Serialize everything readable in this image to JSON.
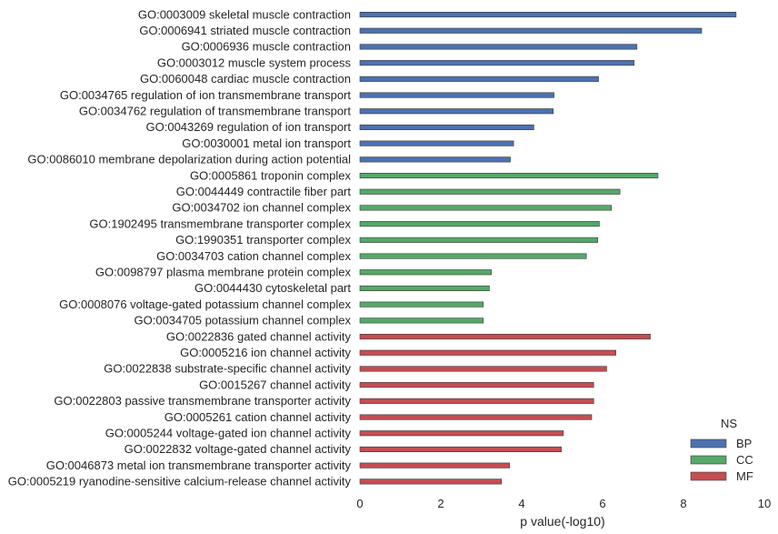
{
  "chart_data": {
    "type": "bar",
    "orientation": "horizontal",
    "xlabel": "p value(-log10)",
    "ylabel": "",
    "xlim": [
      0,
      10
    ],
    "xticks": [
      "0",
      "2",
      "4",
      "6",
      "8",
      "10"
    ],
    "grid": false,
    "legend": {
      "title": "NS",
      "placement": "bottom-right",
      "entries": [
        {
          "name": "BP",
          "color": "#4c72b0"
        },
        {
          "name": "CC",
          "color": "#55a868"
        },
        {
          "name": "MF",
          "color": "#c44e52"
        }
      ]
    },
    "bars": [
      {
        "label": "GO:0003009 skeletal muscle contraction",
        "ns": "BP",
        "value": 9.3
      },
      {
        "label": "GO:0006941 striated muscle contraction",
        "ns": "BP",
        "value": 8.45
      },
      {
        "label": "GO:0006936 muscle contraction",
        "ns": "BP",
        "value": 6.85
      },
      {
        "label": "GO:0003012 muscle system process",
        "ns": "BP",
        "value": 6.78
      },
      {
        "label": "GO:0060048 cardiac muscle contraction",
        "ns": "BP",
        "value": 5.9
      },
      {
        "label": "GO:0034765 regulation of ion transmembrane transport",
        "ns": "BP",
        "value": 4.8
      },
      {
        "label": "GO:0034762 regulation of transmembrane transport",
        "ns": "BP",
        "value": 4.78
      },
      {
        "label": "GO:0043269 regulation of ion transport",
        "ns": "BP",
        "value": 4.3
      },
      {
        "label": "GO:0030001 metal ion transport",
        "ns": "BP",
        "value": 3.8
      },
      {
        "label": "GO:0086010 membrane depolarization during action potential",
        "ns": "BP",
        "value": 3.72
      },
      {
        "label": "GO:0005861 troponin complex",
        "ns": "CC",
        "value": 7.37
      },
      {
        "label": "GO:0044449 contractile fiber part",
        "ns": "CC",
        "value": 6.43
      },
      {
        "label": "GO:0034702 ion channel complex",
        "ns": "CC",
        "value": 6.22
      },
      {
        "label": "GO:1902495 transmembrane transporter complex",
        "ns": "CC",
        "value": 5.92
      },
      {
        "label": "GO:1990351 transporter complex",
        "ns": "CC",
        "value": 5.88
      },
      {
        "label": "GO:0034703 cation channel complex",
        "ns": "CC",
        "value": 5.6
      },
      {
        "label": "GO:0098797 plasma membrane protein complex",
        "ns": "CC",
        "value": 3.25
      },
      {
        "label": "GO:0044430 cytoskeletal part",
        "ns": "CC",
        "value": 3.2
      },
      {
        "label": "GO:0008076 voltage-gated potassium channel complex",
        "ns": "CC",
        "value": 3.05
      },
      {
        "label": "GO:0034705 potassium channel complex",
        "ns": "CC",
        "value": 3.05
      },
      {
        "label": "GO:0022836 gated channel activity",
        "ns": "MF",
        "value": 7.18
      },
      {
        "label": "GO:0005216 ion channel activity",
        "ns": "MF",
        "value": 6.33
      },
      {
        "label": "GO:0022838 substrate-specific channel activity",
        "ns": "MF",
        "value": 6.1
      },
      {
        "label": "GO:0015267 channel activity",
        "ns": "MF",
        "value": 5.78
      },
      {
        "label": "GO:0022803 passive transmembrane transporter activity",
        "ns": "MF",
        "value": 5.78
      },
      {
        "label": "GO:0005261 cation channel activity",
        "ns": "MF",
        "value": 5.73
      },
      {
        "label": "GO:0005244 voltage-gated ion channel activity",
        "ns": "MF",
        "value": 5.03
      },
      {
        "label": "GO:0022832 voltage-gated channel activity",
        "ns": "MF",
        "value": 4.98
      },
      {
        "label": "GO:0046873 metal ion transmembrane transporter activity",
        "ns": "MF",
        "value": 3.7
      },
      {
        "label": "GO:0005219 ryanodine-sensitive calcium-release channel activity",
        "ns": "MF",
        "value": 3.5
      }
    ]
  }
}
